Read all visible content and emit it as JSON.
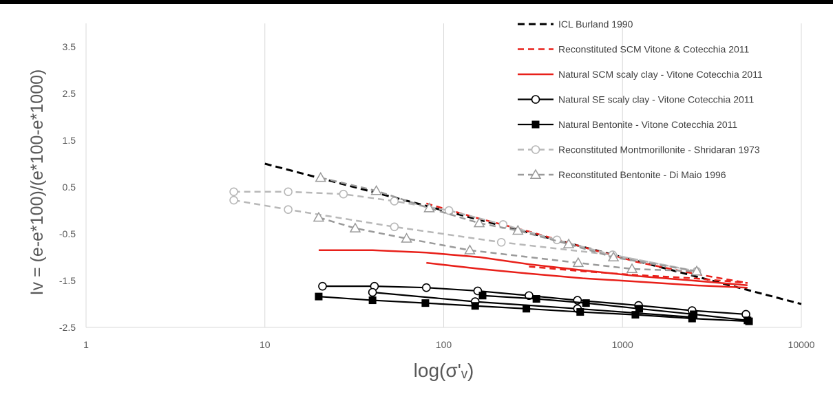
{
  "chart_data": {
    "type": "line",
    "title": "",
    "xlabel": "log(σ'ᵥ)",
    "ylabel": "Iv = (e-e*100)/(e*100-e*1000)",
    "x_scale": "log",
    "xlim": [
      1,
      10000
    ],
    "ylim": [
      -2.5,
      4
    ],
    "x_ticks": [
      1,
      10,
      100,
      1000,
      10000
    ],
    "x_tick_labels": [
      "1",
      "10",
      "100",
      "1000",
      "10000"
    ],
    "y_ticks": [
      -2.5,
      -1.5,
      -0.5,
      0.5,
      1.5,
      2.5,
      3.5
    ],
    "y_tick_labels": [
      "-2.5",
      "-1.5",
      "-0.5",
      "0.5",
      "1.5",
      "2.5",
      "3.5"
    ],
    "vertical_grid": true,
    "legend_position": "top-right",
    "series": [
      {
        "name": "ICL Burland 1990",
        "color": "#000000",
        "dash": "dashed",
        "marker": "none",
        "segments": [
          [
            [
              10,
              1.0
            ],
            [
              10000,
              -2.0
            ]
          ]
        ]
      },
      {
        "name": "Reconstituted SCM Vitone & Cotecchia 2011",
        "color": "#e8201a",
        "dash": "dashed",
        "marker": "none",
        "segments": [
          [
            [
              80,
              0.15
            ],
            [
              150,
              -0.15
            ],
            [
              300,
              -0.45
            ],
            [
              600,
              -0.78
            ],
            [
              1200,
              -1.1
            ],
            [
              2500,
              -1.35
            ],
            [
              5000,
              -1.55
            ]
          ],
          [
            [
              300,
              -1.2
            ],
            [
              600,
              -1.3
            ],
            [
              1200,
              -1.38
            ],
            [
              2500,
              -1.45
            ],
            [
              5000,
              -1.55
            ]
          ]
        ]
      },
      {
        "name": "Natural SCM scaly clay - Vitone Cotecchia 2011",
        "color": "#e8201a",
        "dash": "solid",
        "marker": "none",
        "segments": [
          [
            [
              20,
              -0.85
            ],
            [
              40,
              -0.85
            ],
            [
              80,
              -0.9
            ],
            [
              160,
              -1.0
            ],
            [
              300,
              -1.15
            ],
            [
              600,
              -1.28
            ],
            [
              1200,
              -1.4
            ],
            [
              2500,
              -1.5
            ],
            [
              5000,
              -1.6
            ]
          ],
          [
            [
              80,
              -1.12
            ],
            [
              160,
              -1.25
            ],
            [
              300,
              -1.35
            ],
            [
              600,
              -1.45
            ],
            [
              1200,
              -1.52
            ],
            [
              2500,
              -1.6
            ],
            [
              5000,
              -1.65
            ]
          ]
        ]
      },
      {
        "name": "Natural SE scaly clay - Vitone Cotecchia 2011",
        "color": "#000000",
        "dash": "solid",
        "marker": "circle-open",
        "segments": [
          [
            [
              21,
              -1.62
            ],
            [
              41,
              -1.62
            ],
            [
              80,
              -1.65
            ],
            [
              155,
              -1.72
            ],
            [
              300,
              -1.82
            ],
            [
              560,
              -1.92
            ],
            [
              1230,
              -2.03
            ],
            [
              2450,
              -2.14
            ],
            [
              4900,
              -2.22
            ]
          ],
          [
            [
              40,
              -1.75
            ],
            [
              150,
              -1.95
            ],
            [
              560,
              -2.1
            ],
            [
              2450,
              -2.28
            ]
          ]
        ]
      },
      {
        "name": "Natural Bentonite - Vitone Cotecchia 2011",
        "color": "#000000",
        "dash": "solid",
        "marker": "square-filled",
        "segments": [
          [
            [
              20,
              -1.84
            ],
            [
              40,
              -1.92
            ],
            [
              79,
              -1.98
            ],
            [
              150,
              -2.04
            ],
            [
              290,
              -2.1
            ],
            [
              580,
              -2.17
            ],
            [
              1180,
              -2.23
            ],
            [
              2450,
              -2.31
            ],
            [
              5100,
              -2.37
            ]
          ],
          [
            [
              165,
              -1.82
            ],
            [
              330,
              -1.89
            ],
            [
              625,
              -1.98
            ],
            [
              1240,
              -2.1
            ],
            [
              2500,
              -2.22
            ],
            [
              5000,
              -2.35
            ]
          ]
        ]
      },
      {
        "name": "Reconstituted Montmorillonite - Shridaran 1973",
        "color": "#b8b8b8",
        "dash": "dashed",
        "marker": "circle-open",
        "segments": [
          [
            [
              6.7,
              0.4
            ],
            [
              13.5,
              0.4
            ],
            [
              27.5,
              0.35
            ],
            [
              53,
              0.2
            ],
            [
              107,
              0.0
            ],
            [
              215,
              -0.3
            ],
            [
              430,
              -0.63
            ],
            [
              880,
              -0.95
            ],
            [
              2600,
              -1.3
            ]
          ],
          [
            [
              6.7,
              0.22
            ],
            [
              13.5,
              0.02
            ],
            [
              53,
              -0.35
            ],
            [
              210,
              -0.68
            ],
            [
              880,
              -0.95
            ],
            [
              2600,
              -1.3
            ]
          ]
        ]
      },
      {
        "name": "Reconstituted Bentonite - Di Maio 1996",
        "color": "#9a9a9a",
        "dash": "dashed",
        "marker": "triangle-open",
        "segments": [
          [
            [
              20.5,
              0.7
            ],
            [
              42,
              0.42
            ],
            [
              83,
              0.05
            ],
            [
              158,
              -0.27
            ],
            [
              260,
              -0.43
            ],
            [
              500,
              -0.72
            ],
            [
              890,
              -1.0
            ],
            [
              2600,
              -1.3
            ]
          ],
          [
            [
              20,
              -0.15
            ],
            [
              32,
              -0.38
            ],
            [
              62,
              -0.6
            ],
            [
              140,
              -0.85
            ],
            [
              565,
              -1.12
            ],
            [
              1130,
              -1.25
            ],
            [
              2600,
              -1.3
            ]
          ]
        ]
      }
    ]
  }
}
